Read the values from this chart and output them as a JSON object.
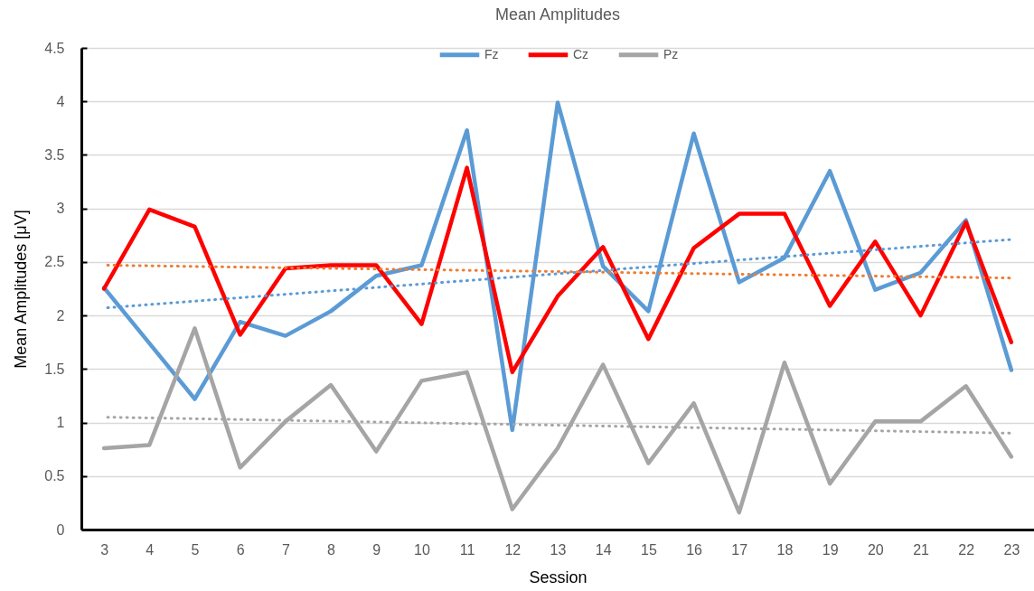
{
  "chart_data": {
    "type": "line",
    "title": "Mean Amplitudes",
    "xlabel": "Session",
    "ylabel": "Mean Amplitudes [μV]",
    "categories": [
      "3",
      "4",
      "5",
      "6",
      "7",
      "8",
      "9",
      "10",
      "11",
      "12",
      "13",
      "14",
      "15",
      "16",
      "17",
      "18",
      "19",
      "20",
      "21",
      "22",
      "23"
    ],
    "series": [
      {
        "name": "Fz",
        "color": "#5b9bd5",
        "values": [
          2.26,
          1.74,
          1.22,
          1.94,
          1.81,
          2.04,
          2.37,
          2.47,
          3.73,
          0.93,
          3.99,
          2.46,
          2.04,
          3.7,
          2.31,
          2.54,
          3.35,
          2.24,
          2.4,
          2.89,
          1.49
        ]
      },
      {
        "name": "Cz",
        "color": "#ff0000",
        "values": [
          2.25,
          2.99,
          2.83,
          1.82,
          2.44,
          2.47,
          2.47,
          1.92,
          3.38,
          1.47,
          2.18,
          2.64,
          1.78,
          2.63,
          2.95,
          2.95,
          2.09,
          2.69,
          2.0,
          2.87,
          1.75
        ]
      },
      {
        "name": "Pz",
        "color": "#a5a5a5",
        "values": [
          0.76,
          0.79,
          1.88,
          0.58,
          1.01,
          1.35,
          0.73,
          1.39,
          1.47,
          0.19,
          0.76,
          1.54,
          0.62,
          1.18,
          0.16,
          1.56,
          0.43,
          1.01,
          1.01,
          1.34,
          0.68
        ]
      },
      {
        "type": "line",
        "color": "#5b9bd5",
        "x": [
          "3",
          "23"
        ],
        "values": [
          2.07,
          2.71
        ],
        "line_style": "dotted"
      },
      {
        "type": "line",
        "color": "#ed7d31",
        "x": [
          "3",
          "23"
        ],
        "values": [
          2.47,
          2.35
        ],
        "line_style": "dotted"
      },
      {
        "type": "line",
        "color": "#a5a5a5",
        "x": [
          "3",
          "23"
        ],
        "values": [
          1.05,
          0.9
        ],
        "line_style": "dotted"
      }
    ],
    "ylim": [
      0,
      4.5
    ],
    "yticks": [
      0,
      0.5,
      1,
      1.5,
      2,
      2.5,
      3,
      3.5,
      4,
      4.5
    ],
    "grid": "y",
    "legend": "top",
    "line_style": "solid"
  }
}
